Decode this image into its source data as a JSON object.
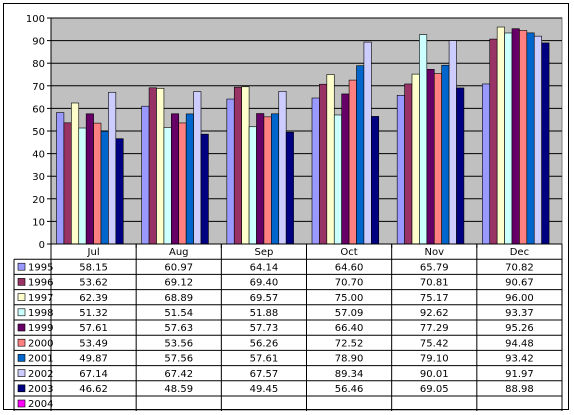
{
  "chart_data": {
    "type": "bar",
    "categories": [
      "Jul",
      "Aug",
      "Sep",
      "Oct",
      "Nov",
      "Dec"
    ],
    "ylim": [
      0,
      100
    ],
    "y_ticks": [
      0,
      10,
      20,
      30,
      40,
      50,
      60,
      70,
      80,
      90,
      100
    ],
    "grid": true,
    "legend": "data-table-left",
    "series": [
      {
        "name": "1995",
        "color": "#9999ff",
        "values": [
          58.15,
          60.97,
          64.14,
          64.6,
          65.79,
          70.82
        ],
        "labels": [
          "58.15",
          "60.97",
          "64.14",
          "64.60",
          "65.79",
          "70.82"
        ]
      },
      {
        "name": "1996",
        "color": "#993366",
        "values": [
          53.62,
          69.12,
          69.4,
          70.7,
          70.81,
          90.67
        ],
        "labels": [
          "53.62",
          "69.12",
          "69.40",
          "70.70",
          "70.81",
          "90.67"
        ]
      },
      {
        "name": "1997",
        "color": "#ffffcc",
        "values": [
          62.39,
          68.89,
          69.57,
          75.0,
          75.17,
          96.0
        ],
        "labels": [
          "62.39",
          "68.89",
          "69.57",
          "75.00",
          "75.17",
          "96.00"
        ]
      },
      {
        "name": "1998",
        "color": "#ccffff",
        "values": [
          51.32,
          51.54,
          51.88,
          57.09,
          92.62,
          93.37
        ],
        "labels": [
          "51.32",
          "51.54",
          "51.88",
          "57.09",
          "92.62",
          "93.37"
        ]
      },
      {
        "name": "1999",
        "color": "#660066",
        "values": [
          57.61,
          57.63,
          57.73,
          66.4,
          77.29,
          95.26
        ],
        "labels": [
          "57.61",
          "57.63",
          "57.73",
          "66.40",
          "77.29",
          "95.26"
        ]
      },
      {
        "name": "2000",
        "color": "#ff8080",
        "values": [
          53.49,
          53.56,
          56.26,
          72.52,
          75.42,
          94.48
        ],
        "labels": [
          "53.49",
          "53.56",
          "56.26",
          "72.52",
          "75.42",
          "94.48"
        ]
      },
      {
        "name": "2001",
        "color": "#0066cc",
        "values": [
          49.87,
          57.56,
          57.61,
          78.9,
          79.1,
          93.42
        ],
        "labels": [
          "49.87",
          "57.56",
          "57.61",
          "78.90",
          "79.10",
          "93.42"
        ]
      },
      {
        "name": "2002",
        "color": "#ccccff",
        "values": [
          67.14,
          67.42,
          67.57,
          89.34,
          90.01,
          91.97
        ],
        "labels": [
          "67.14",
          "67.42",
          "67.57",
          "89.34",
          "90.01",
          "91.97"
        ]
      },
      {
        "name": "2003",
        "color": "#000080",
        "values": [
          46.62,
          48.59,
          49.45,
          56.46,
          69.05,
          88.98
        ],
        "labels": [
          "46.62",
          "48.59",
          "49.45",
          "56.46",
          "69.05",
          "88.98"
        ]
      },
      {
        "name": "2004",
        "color": "#ff00ff",
        "values": [
          null,
          null,
          null,
          null,
          null,
          null
        ],
        "labels": [
          "",
          "",
          "",
          "",
          "",
          ""
        ]
      }
    ]
  },
  "colors": {
    "plot_background": "#c0c0c0",
    "gridline": "#000000"
  }
}
